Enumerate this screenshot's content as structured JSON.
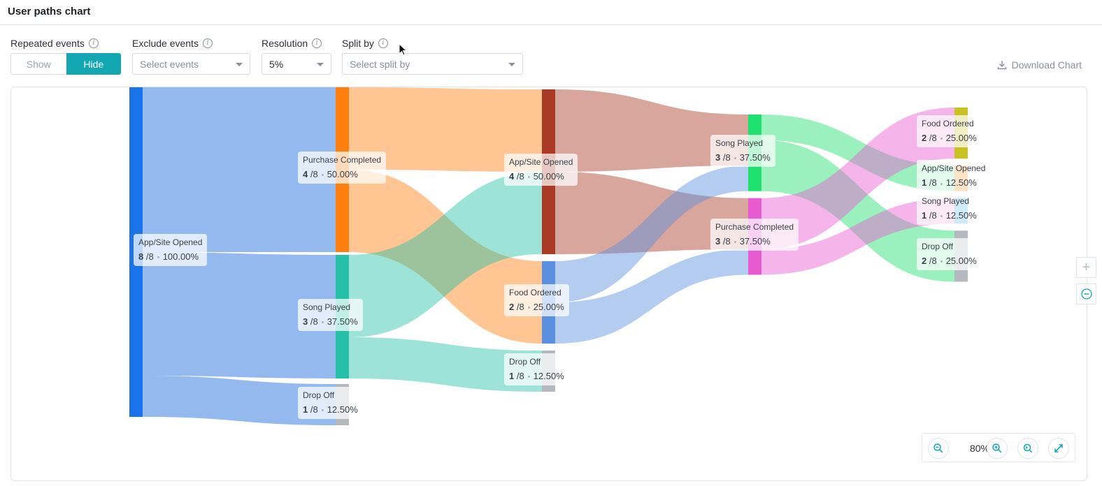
{
  "header": {
    "title": "User paths chart"
  },
  "controls": {
    "repeated_events": {
      "label": "Repeated events",
      "show_label": "Show",
      "hide_label": "Hide",
      "selected": "Hide"
    },
    "exclude_events": {
      "label": "Exclude events",
      "placeholder": "Select events"
    },
    "resolution": {
      "label": "Resolution",
      "value": "5%"
    },
    "split_by": {
      "label": "Split by",
      "placeholder": "Select split by"
    },
    "download_label": "Download Chart"
  },
  "zoom": {
    "level": "80%"
  },
  "colors": {
    "accent": "#12a7b3"
  },
  "chart_data": {
    "type": "sankey",
    "total": 8,
    "steps": [
      [
        {
          "id": "s1_open",
          "name": "App/Site Opened",
          "count": 8,
          "pct": "100.00%",
          "color": "#1a73e8"
        }
      ],
      [
        {
          "id": "s2_purchase",
          "name": "Purchase Completed",
          "count": 4,
          "pct": "50.00%",
          "color": "#ff7f0e"
        },
        {
          "id": "s2_song",
          "name": "Song Played",
          "count": 3,
          "pct": "37.50%",
          "color": "#26c0a8"
        },
        {
          "id": "s2_drop",
          "name": "Drop Off",
          "count": 1,
          "pct": "12.50%",
          "color": "#b4b9bf"
        }
      ],
      [
        {
          "id": "s3_open",
          "name": "App/Site Opened",
          "count": 4,
          "pct": "50.00%",
          "color": "#a83a26"
        },
        {
          "id": "s3_food",
          "name": "Food Ordered",
          "count": 2,
          "pct": "25.00%",
          "color": "#5b8fe0"
        },
        {
          "id": "s3_drop",
          "name": "Drop Off",
          "count": 1,
          "pct": "12.50%",
          "color": "#b4b9bf"
        }
      ],
      [
        {
          "id": "s4_song",
          "name": "Song Played",
          "count": 3,
          "pct": "37.50%",
          "color": "#1ee06e"
        },
        {
          "id": "s4_purchase",
          "name": "Purchase Completed",
          "count": 3,
          "pct": "37.50%",
          "color": "#e85ad0"
        }
      ],
      [
        {
          "id": "s5_food",
          "name": "Food Ordered",
          "count": 2,
          "pct": "25.00%",
          "color": "#c9c224"
        },
        {
          "id": "s5_open",
          "name": "App/Site Opened",
          "count": 1,
          "pct": "12.50%",
          "color": "#f59a3c"
        },
        {
          "id": "s5_song",
          "name": "Song Played",
          "count": 1,
          "pct": "12.50%",
          "color": "#55b7e3"
        },
        {
          "id": "s5_drop",
          "name": "Drop Off",
          "count": 2,
          "pct": "25.00%",
          "color": "#b4b9bf"
        }
      ]
    ],
    "links": [
      {
        "source": "s1_open",
        "target": "s2_purchase",
        "value": 4
      },
      {
        "source": "s1_open",
        "target": "s2_song",
        "value": 3
      },
      {
        "source": "s1_open",
        "target": "s2_drop",
        "value": 1
      },
      {
        "source": "s2_purchase",
        "target": "s3_open",
        "value": 2
      },
      {
        "source": "s2_purchase",
        "target": "s3_food",
        "value": 2
      },
      {
        "source": "s2_song",
        "target": "s3_open",
        "value": 2
      },
      {
        "source": "s2_song",
        "target": "s3_drop",
        "value": 1
      },
      {
        "source": "s3_open",
        "target": "s4_song",
        "value": 2
      },
      {
        "source": "s3_open",
        "target": "s4_purchase",
        "value": 2
      },
      {
        "source": "s3_food",
        "target": "s4_song",
        "value": 1
      },
      {
        "source": "s3_food",
        "target": "s4_purchase",
        "value": 1
      },
      {
        "source": "s4_song",
        "target": "s5_open",
        "value": 1
      },
      {
        "source": "s4_song",
        "target": "s5_drop",
        "value": 2
      },
      {
        "source": "s4_purchase",
        "target": "s5_food",
        "value": 2
      },
      {
        "source": "s4_purchase",
        "target": "s5_song",
        "value": 1
      }
    ]
  }
}
